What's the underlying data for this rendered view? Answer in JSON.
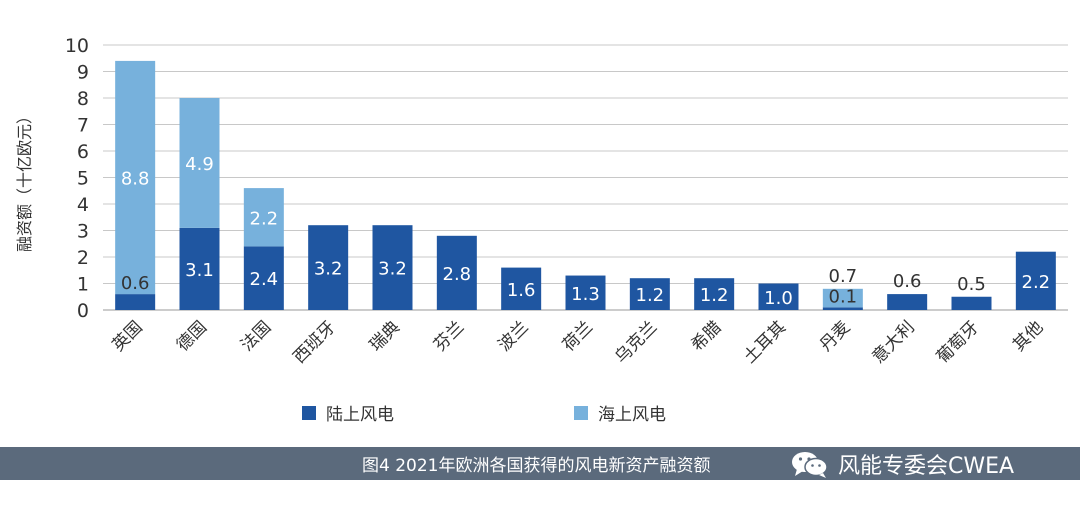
{
  "chart_data": {
    "type": "bar",
    "stacked": true,
    "ylabel": "融资额（十亿欧元）",
    "ylim": [
      0,
      10
    ],
    "yticks": [
      0,
      1,
      2,
      3,
      4,
      5,
      6,
      7,
      8,
      9,
      10
    ],
    "grid": true,
    "categories": [
      "英国",
      "德国",
      "法国",
      "西班牙",
      "瑞典",
      "芬兰",
      "波兰",
      "荷兰",
      "乌克兰",
      "希腊",
      "土耳其",
      "丹麦",
      "意大利",
      "葡萄牙",
      "其他"
    ],
    "series": [
      {
        "name": "陆上风电",
        "color": "#1f56a1",
        "values": [
          0.6,
          3.1,
          2.4,
          3.2,
          3.2,
          2.8,
          1.6,
          1.3,
          1.2,
          1.2,
          1.0,
          0.1,
          0.6,
          0.5,
          2.2
        ]
      },
      {
        "name": "海上风电",
        "color": "#77b1dc",
        "values": [
          8.8,
          4.9,
          2.2,
          0,
          0,
          0,
          0,
          0,
          0,
          0,
          0,
          0.7,
          0,
          0,
          0
        ]
      }
    ],
    "data_labels": {
      "陆上风电": [
        "0.6",
        "3.1",
        "2.4",
        "3.2",
        "3.2",
        "2.8",
        "1.6",
        "1.3",
        "1.2",
        "1.2",
        "1.0",
        "0.1",
        "0.6",
        "0.5",
        "2.2"
      ],
      "海上风电": [
        "8.8",
        "4.9",
        "2.2",
        "",
        "",
        "",
        "",
        "",
        "",
        "",
        "",
        "0.7",
        "",
        "",
        ""
      ]
    },
    "legend_position": "bottom"
  },
  "legend": {
    "onshore_label": "陆上风电",
    "offshore_label": "海上风电"
  },
  "footer": {
    "caption": "图4 2021年欧洲各国获得的风电新资产融资额",
    "watermark": "风能专委会CWEA",
    "watermark_icon": "wechat-icon",
    "background_color": "#5b6a7c"
  }
}
